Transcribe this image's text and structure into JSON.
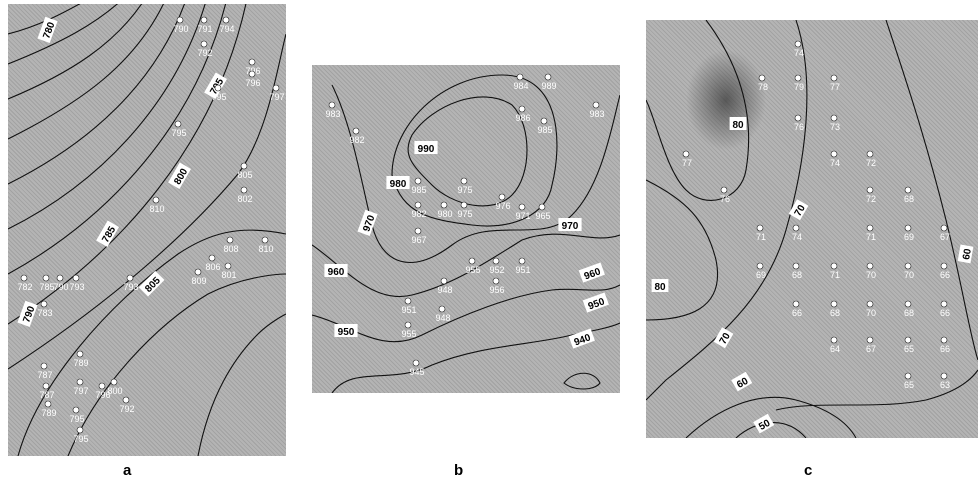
{
  "figure": {
    "panels": [
      {
        "letter": "a",
        "contours": [
          {
            "label": "780",
            "lx": 40,
            "ly": 26,
            "rot": -70
          },
          {
            "label": "785",
            "lx": 100,
            "ly": 230,
            "rot": -60
          },
          {
            "label": "790",
            "lx": 20,
            "ly": 310,
            "rot": -70
          },
          {
            "label": "795",
            "lx": 208,
            "ly": 82,
            "rot": -60
          },
          {
            "label": "800",
            "lx": 172,
            "ly": 172,
            "rot": -60
          },
          {
            "label": "805",
            "lx": 144,
            "ly": 280,
            "rot": -45
          }
        ],
        "points": [
          {
            "x": 172,
            "y": 16,
            "v": "790"
          },
          {
            "x": 196,
            "y": 16,
            "v": "791"
          },
          {
            "x": 218,
            "y": 16,
            "v": "794"
          },
          {
            "x": 196,
            "y": 40,
            "v": "792"
          },
          {
            "x": 244,
            "y": 58,
            "v": "796"
          },
          {
            "x": 244,
            "y": 70,
            "v": "796"
          },
          {
            "x": 268,
            "y": 84,
            "v": "797"
          },
          {
            "x": 210,
            "y": 84,
            "v": "795"
          },
          {
            "x": 170,
            "y": 120,
            "v": "795"
          },
          {
            "x": 236,
            "y": 162,
            "v": "805"
          },
          {
            "x": 236,
            "y": 186,
            "v": "802"
          },
          {
            "x": 148,
            "y": 196,
            "v": "810"
          },
          {
            "x": 257,
            "y": 236,
            "v": "810"
          },
          {
            "x": 222,
            "y": 236,
            "v": "808"
          },
          {
            "x": 204,
            "y": 254,
            "v": "806"
          },
          {
            "x": 190,
            "y": 268,
            "v": "809"
          },
          {
            "x": 220,
            "y": 262,
            "v": "801"
          },
          {
            "x": 16,
            "y": 274,
            "v": "782"
          },
          {
            "x": 38,
            "y": 274,
            "v": "785"
          },
          {
            "x": 52,
            "y": 274,
            "v": "790"
          },
          {
            "x": 68,
            "y": 274,
            "v": "793"
          },
          {
            "x": 122,
            "y": 274,
            "v": "793"
          },
          {
            "x": 36,
            "y": 300,
            "v": "783"
          },
          {
            "x": 72,
            "y": 350,
            "v": "789"
          },
          {
            "x": 36,
            "y": 362,
            "v": "787"
          },
          {
            "x": 72,
            "y": 378,
            "v": "797"
          },
          {
            "x": 94,
            "y": 382,
            "v": "796"
          },
          {
            "x": 106,
            "y": 378,
            "v": "800"
          },
          {
            "x": 38,
            "y": 382,
            "v": "787"
          },
          {
            "x": 118,
            "y": 396,
            "v": "792"
          },
          {
            "x": 40,
            "y": 400,
            "v": "789"
          },
          {
            "x": 68,
            "y": 406,
            "v": "795"
          },
          {
            "x": 72,
            "y": 426,
            "v": "795"
          }
        ]
      },
      {
        "letter": "b",
        "contours": [
          {
            "label": "990",
            "lx": 114,
            "ly": 83,
            "rot": 0
          },
          {
            "label": "980",
            "lx": 86,
            "ly": 118,
            "rot": 0
          },
          {
            "label": "970",
            "lx": 56,
            "ly": 158,
            "rot": -70
          },
          {
            "label": "970",
            "lx": 258,
            "ly": 160,
            "rot": 0
          },
          {
            "label": "960",
            "lx": 24,
            "ly": 206,
            "rot": 0
          },
          {
            "label": "960",
            "lx": 280,
            "ly": 208,
            "rot": -20
          },
          {
            "label": "950",
            "lx": 34,
            "ly": 266,
            "rot": 0
          },
          {
            "label": "950",
            "lx": 284,
            "ly": 238,
            "rot": -20
          },
          {
            "label": "940",
            "lx": 270,
            "ly": 274,
            "rot": -20
          }
        ],
        "points": [
          {
            "x": 208,
            "y": 12,
            "v": "984"
          },
          {
            "x": 236,
            "y": 12,
            "v": "989"
          },
          {
            "x": 20,
            "y": 40,
            "v": "983"
          },
          {
            "x": 284,
            "y": 40,
            "v": "983"
          },
          {
            "x": 210,
            "y": 44,
            "v": "986"
          },
          {
            "x": 232,
            "y": 56,
            "v": "985"
          },
          {
            "x": 44,
            "y": 66,
            "v": "982"
          },
          {
            "x": 106,
            "y": 116,
            "v": "985"
          },
          {
            "x": 152,
            "y": 116,
            "v": "975"
          },
          {
            "x": 190,
            "y": 132,
            "v": "976"
          },
          {
            "x": 106,
            "y": 140,
            "v": "982"
          },
          {
            "x": 132,
            "y": 140,
            "v": "980"
          },
          {
            "x": 152,
            "y": 140,
            "v": "975"
          },
          {
            "x": 210,
            "y": 142,
            "v": "971"
          },
          {
            "x": 230,
            "y": 142,
            "v": "965"
          },
          {
            "x": 106,
            "y": 166,
            "v": "967"
          },
          {
            "x": 160,
            "y": 196,
            "v": "955"
          },
          {
            "x": 184,
            "y": 196,
            "v": "952"
          },
          {
            "x": 210,
            "y": 196,
            "v": "951"
          },
          {
            "x": 184,
            "y": 216,
            "v": "956"
          },
          {
            "x": 132,
            "y": 216,
            "v": "948"
          },
          {
            "x": 96,
            "y": 236,
            "v": "951"
          },
          {
            "x": 130,
            "y": 244,
            "v": "948"
          },
          {
            "x": 96,
            "y": 260,
            "v": "955"
          },
          {
            "x": 104,
            "y": 298,
            "v": "945"
          }
        ]
      },
      {
        "letter": "c",
        "contours": [
          {
            "label": "80",
            "lx": 92,
            "ly": 104,
            "rot": 0
          },
          {
            "label": "70",
            "lx": 153,
            "ly": 190,
            "rot": -60
          },
          {
            "label": "80",
            "lx": 14,
            "ly": 266,
            "rot": 0
          },
          {
            "label": "70",
            "lx": 78,
            "ly": 318,
            "rot": -60
          },
          {
            "label": "60",
            "lx": 96,
            "ly": 362,
            "rot": -30
          },
          {
            "label": "60",
            "lx": 320,
            "ly": 234,
            "rot": -80
          },
          {
            "label": "50",
            "lx": 118,
            "ly": 404,
            "rot": -30
          }
        ],
        "points": [
          {
            "x": 152,
            "y": 24,
            "v": "74"
          },
          {
            "x": 116,
            "y": 58,
            "v": "78"
          },
          {
            "x": 152,
            "y": 58,
            "v": "79"
          },
          {
            "x": 188,
            "y": 58,
            "v": "77"
          },
          {
            "x": 152,
            "y": 98,
            "v": "76"
          },
          {
            "x": 188,
            "y": 98,
            "v": "73"
          },
          {
            "x": 40,
            "y": 134,
            "v": "77"
          },
          {
            "x": 188,
            "y": 134,
            "v": "74"
          },
          {
            "x": 224,
            "y": 134,
            "v": "72"
          },
          {
            "x": 78,
            "y": 170,
            "v": "76"
          },
          {
            "x": 224,
            "y": 170,
            "v": "72"
          },
          {
            "x": 262,
            "y": 170,
            "v": "68"
          },
          {
            "x": 114,
            "y": 208,
            "v": "71"
          },
          {
            "x": 150,
            "y": 208,
            "v": "74"
          },
          {
            "x": 224,
            "y": 208,
            "v": "71"
          },
          {
            "x": 262,
            "y": 208,
            "v": "69"
          },
          {
            "x": 298,
            "y": 208,
            "v": "67"
          },
          {
            "x": 114,
            "y": 246,
            "v": "69"
          },
          {
            "x": 150,
            "y": 246,
            "v": "68"
          },
          {
            "x": 188,
            "y": 246,
            "v": "71"
          },
          {
            "x": 224,
            "y": 246,
            "v": "70"
          },
          {
            "x": 262,
            "y": 246,
            "v": "70"
          },
          {
            "x": 298,
            "y": 246,
            "v": "66"
          },
          {
            "x": 150,
            "y": 284,
            "v": "66"
          },
          {
            "x": 188,
            "y": 284,
            "v": "68"
          },
          {
            "x": 224,
            "y": 284,
            "v": "70"
          },
          {
            "x": 262,
            "y": 284,
            "v": "68"
          },
          {
            "x": 298,
            "y": 284,
            "v": "66"
          },
          {
            "x": 188,
            "y": 320,
            "v": "64"
          },
          {
            "x": 224,
            "y": 320,
            "v": "67"
          },
          {
            "x": 262,
            "y": 320,
            "v": "65"
          },
          {
            "x": 298,
            "y": 320,
            "v": "66"
          },
          {
            "x": 262,
            "y": 356,
            "v": "65"
          },
          {
            "x": 298,
            "y": 356,
            "v": "63"
          }
        ]
      }
    ]
  }
}
